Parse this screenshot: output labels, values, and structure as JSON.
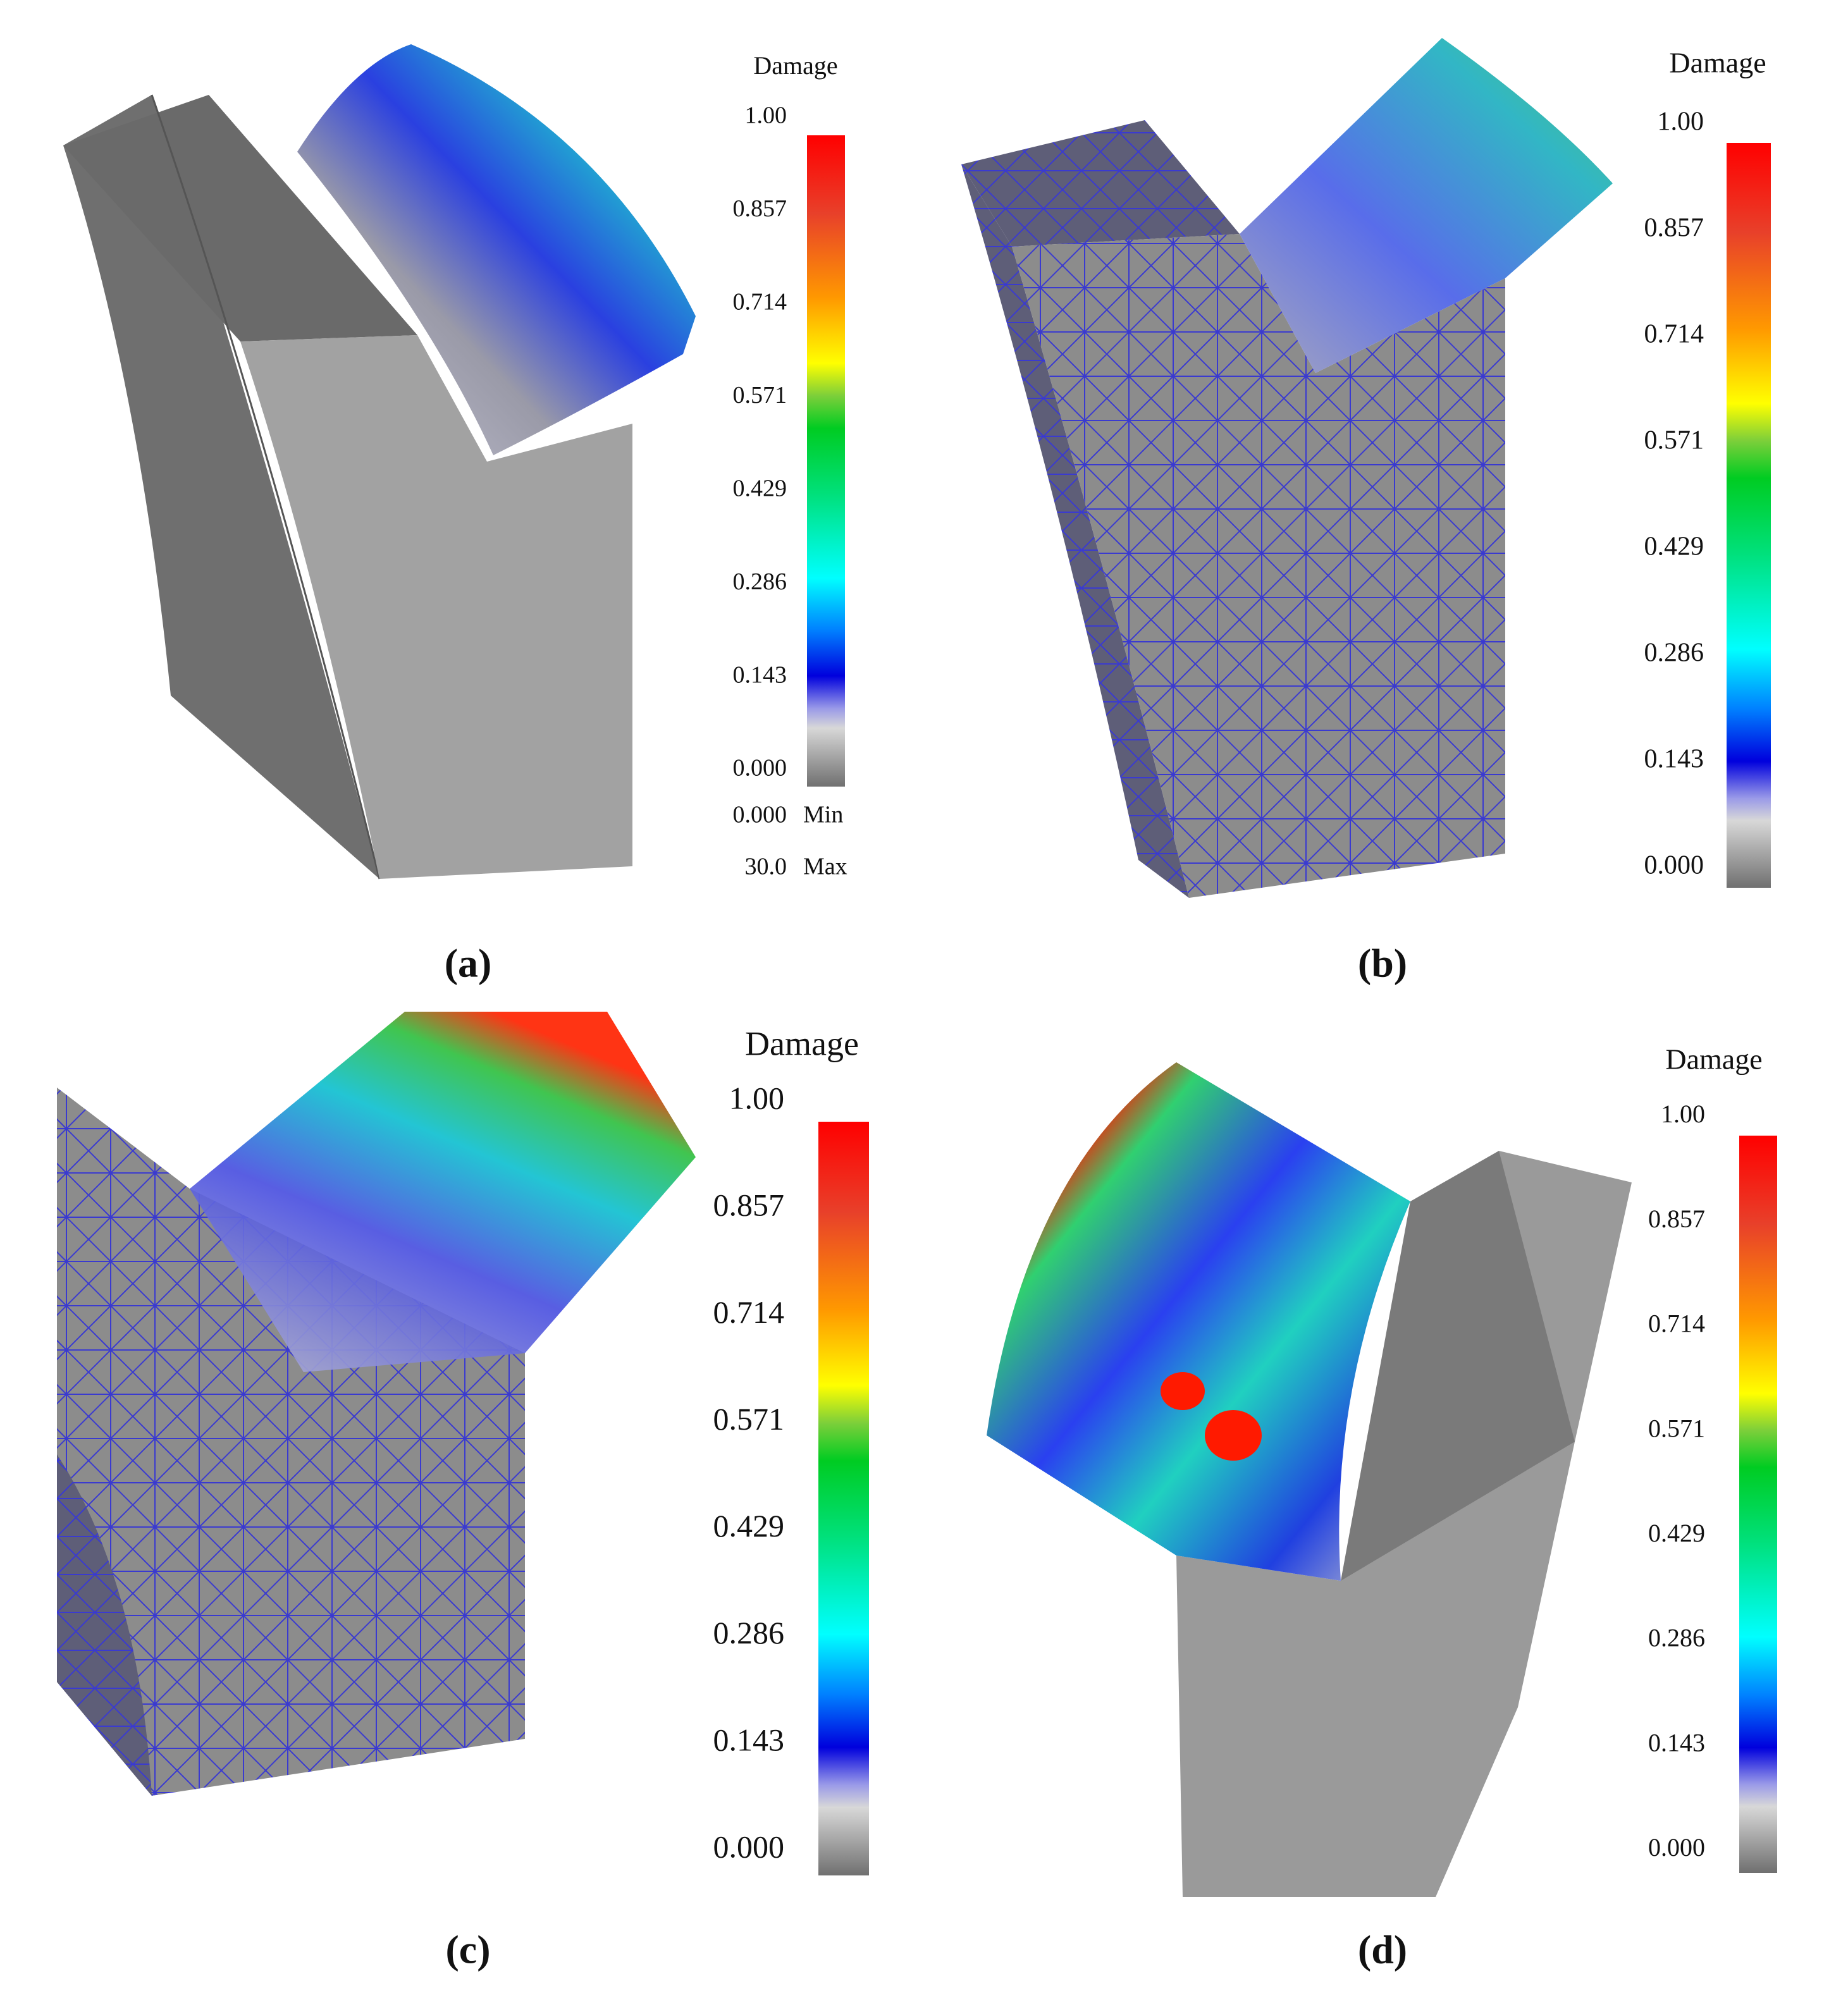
{
  "panels": [
    {
      "label": "(a)",
      "colorbar": {
        "title": "Damage",
        "ticks": [
          "1.00",
          "0.857",
          "0.714",
          "0.571",
          "0.429",
          "0.286",
          "0.143",
          "0.000"
        ],
        "extremes": [
          [
            "0.000",
            "Min"
          ],
          [
            "30.0",
            "Max"
          ]
        ]
      }
    },
    {
      "label": "(b)",
      "colorbar": {
        "title": "Damage",
        "ticks": [
          "1.00",
          "0.857",
          "0.714",
          "0.571",
          "0.429",
          "0.286",
          "0.143",
          "0.000"
        ]
      }
    },
    {
      "label": "(c)",
      "colorbar": {
        "title": "Damage",
        "ticks": [
          "1.00",
          "0.857",
          "0.714",
          "0.571",
          "0.429",
          "0.286",
          "0.143",
          "0.000"
        ]
      }
    },
    {
      "label": "(d)",
      "colorbar": {
        "title": "Damage",
        "ticks": [
          "1.00",
          "0.857",
          "0.714",
          "0.571",
          "0.429",
          "0.286",
          "0.143",
          "0.000"
        ]
      }
    }
  ]
}
